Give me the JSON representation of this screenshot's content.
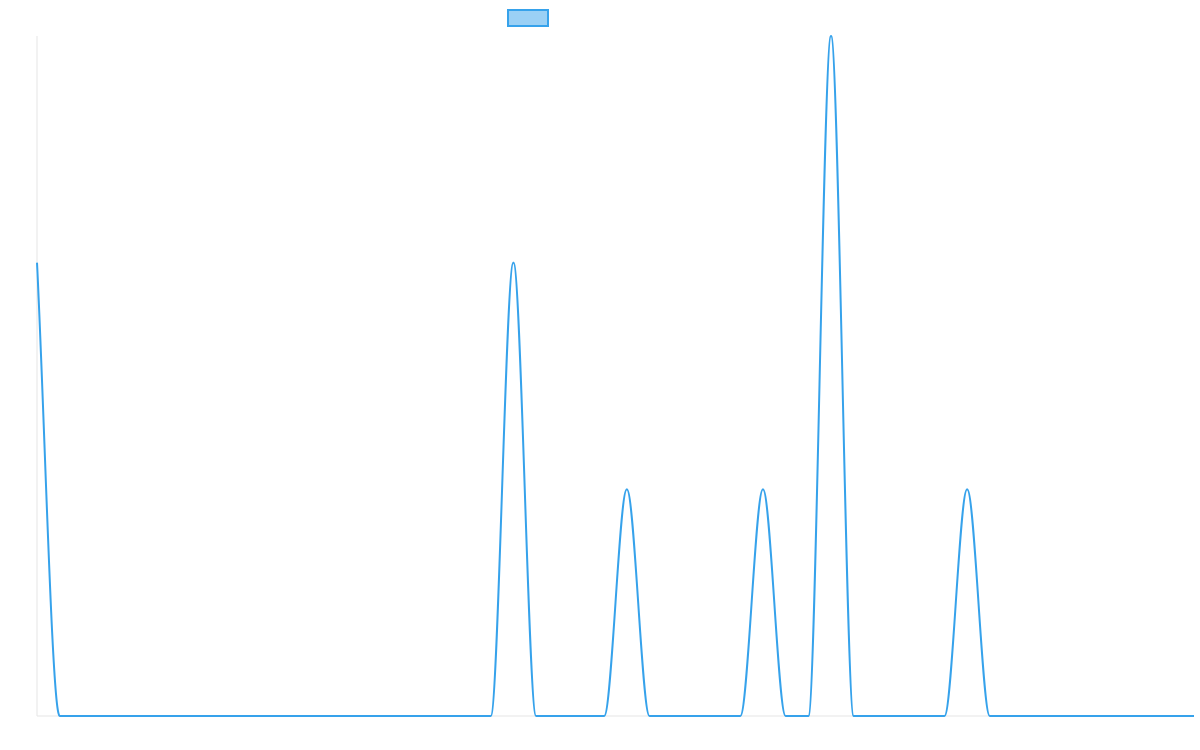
{
  "chart_data": {
    "type": "line",
    "title": "",
    "xlabel": "",
    "ylabel": "",
    "legend": {
      "position": "top-center",
      "entries": [
        {
          "name": "",
          "color": "#36a2eb",
          "fill": "#9ad0f5"
        }
      ]
    },
    "grid": false,
    "xlim": [
      0,
      51
    ],
    "ylim": [
      0,
      3
    ],
    "x": [
      0,
      1,
      2,
      3,
      4,
      5,
      6,
      7,
      8,
      9,
      10,
      11,
      12,
      13,
      14,
      15,
      16,
      17,
      18,
      19,
      20,
      21,
      22,
      23,
      24,
      25,
      26,
      27,
      28,
      29,
      30,
      31,
      32,
      33,
      34,
      35,
      36,
      37,
      38,
      39,
      40,
      41,
      42,
      43,
      44,
      45,
      46,
      47,
      48,
      49,
      50,
      51
    ],
    "series": [
      {
        "name": "",
        "color": "#36a2eb",
        "values": [
          2,
          0,
          0,
          0,
          0,
          0,
          0,
          0,
          0,
          0,
          0,
          0,
          0,
          0,
          0,
          0,
          0,
          0,
          0,
          0,
          0,
          2,
          0,
          0,
          0,
          0,
          1,
          0,
          0,
          0,
          0,
          0,
          1,
          0,
          0,
          3,
          0,
          0,
          0,
          0,
          0,
          1,
          0,
          0,
          0,
          0,
          0,
          0,
          0,
          0,
          0,
          0
        ]
      }
    ]
  }
}
